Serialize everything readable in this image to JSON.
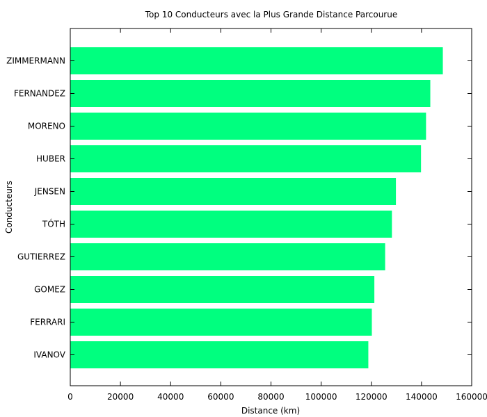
{
  "chart_data": {
    "type": "bar",
    "orientation": "horizontal",
    "title": "Top 10 Conducteurs avec la Plus Grande Distance Parcourue",
    "xlabel": "Distance (km)",
    "ylabel": "Conducteurs",
    "xlim": [
      0,
      160000
    ],
    "xticks": [
      "0",
      "20000",
      "40000",
      "60000",
      "80000",
      "100000",
      "120000",
      "140000",
      "160000"
    ],
    "grid": false,
    "bar_color": "#00ff7f",
    "categories": [
      "ZIMMERMANN",
      "FERNANDEZ",
      "MORENO",
      "HUBER",
      "JENSEN",
      "TÓTH",
      "GUTIERREZ",
      "GOMEZ",
      "FERRARI",
      "IVANOV"
    ],
    "values": [
      148500,
      143500,
      141800,
      139800,
      129800,
      128200,
      125500,
      121200,
      120200,
      118800
    ]
  }
}
